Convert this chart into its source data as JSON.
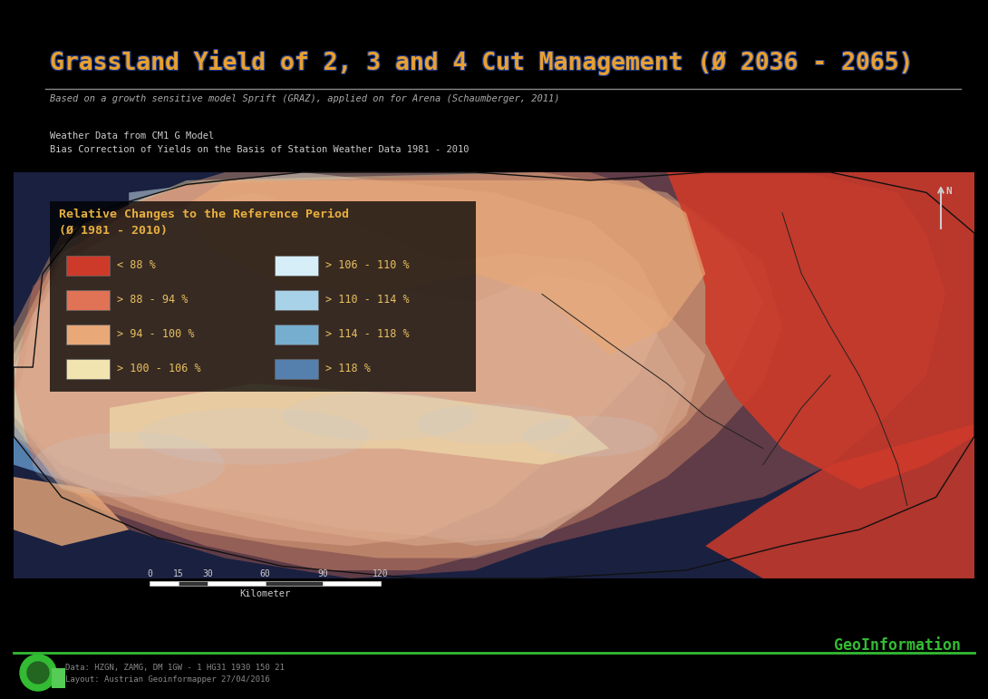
{
  "title": "Grassland Yield of 2, 3 and 4 Cut Management (Ø 2036 - 2065)",
  "subtitle": "Based on a growth sensitive model Sprift (GRAZ), applied on for Arena (Schaumberger, 2011)",
  "note_line1": "Weather Data from CM1 G Model",
  "note_line2": "Bias Correction of Yields on the Basis of Station Weather Data 1981 - 2010",
  "legend_title_line1": "Relative Changes to the Reference Period",
  "legend_title_line2": "(Ø 1981 - 2010)",
  "legend_items_col1": [
    {
      "label": "< 88 %",
      "color": "#cd3a2a"
    },
    {
      "label": "> 88 - 94 %",
      "color": "#e07256"
    },
    {
      "label": "> 94 - 100 %",
      "color": "#e8a878"
    },
    {
      "label": "> 100 - 106 %",
      "color": "#f2e4b0"
    }
  ],
  "legend_items_col2": [
    {
      "label": "> 106 - 110 %",
      "color": "#d6eef7"
    },
    {
      "label": "> 110 - 114 %",
      "color": "#a8d2e8"
    },
    {
      "label": "> 114 - 118 %",
      "color": "#76aed0"
    },
    {
      "label": "> 118 %",
      "color": "#5580ae"
    }
  ],
  "scale_ticks": [
    0,
    15,
    30,
    60,
    90,
    120
  ],
  "scale_label": "Kilometer",
  "footer_left_line1": "Data: HZGN, ZAMG, DM 1GW - 1 HG31 1930 150 21",
  "footer_left_line2": "Layout: Austrian Geoinformapper 27/04/2016",
  "footer_right": "GeoInformation",
  "background_color": "#000000",
  "title_color": "#e8a030",
  "title_outline_color": "#1a3888",
  "subtitle_color": "#aaaaaa",
  "note_color": "#cccccc",
  "sep_color": "#888888",
  "legend_title_color": "#e8b040",
  "legend_text_color": "#e8c060",
  "scale_color": "#cccccc",
  "footer_text_color": "#888888",
  "footer_right_color": "#33bb33",
  "footer_line_color": "#33bb33",
  "north_color": "#cccccc",
  "map_bg_color": "#1a2040",
  "austria_border_color": "#222222"
}
